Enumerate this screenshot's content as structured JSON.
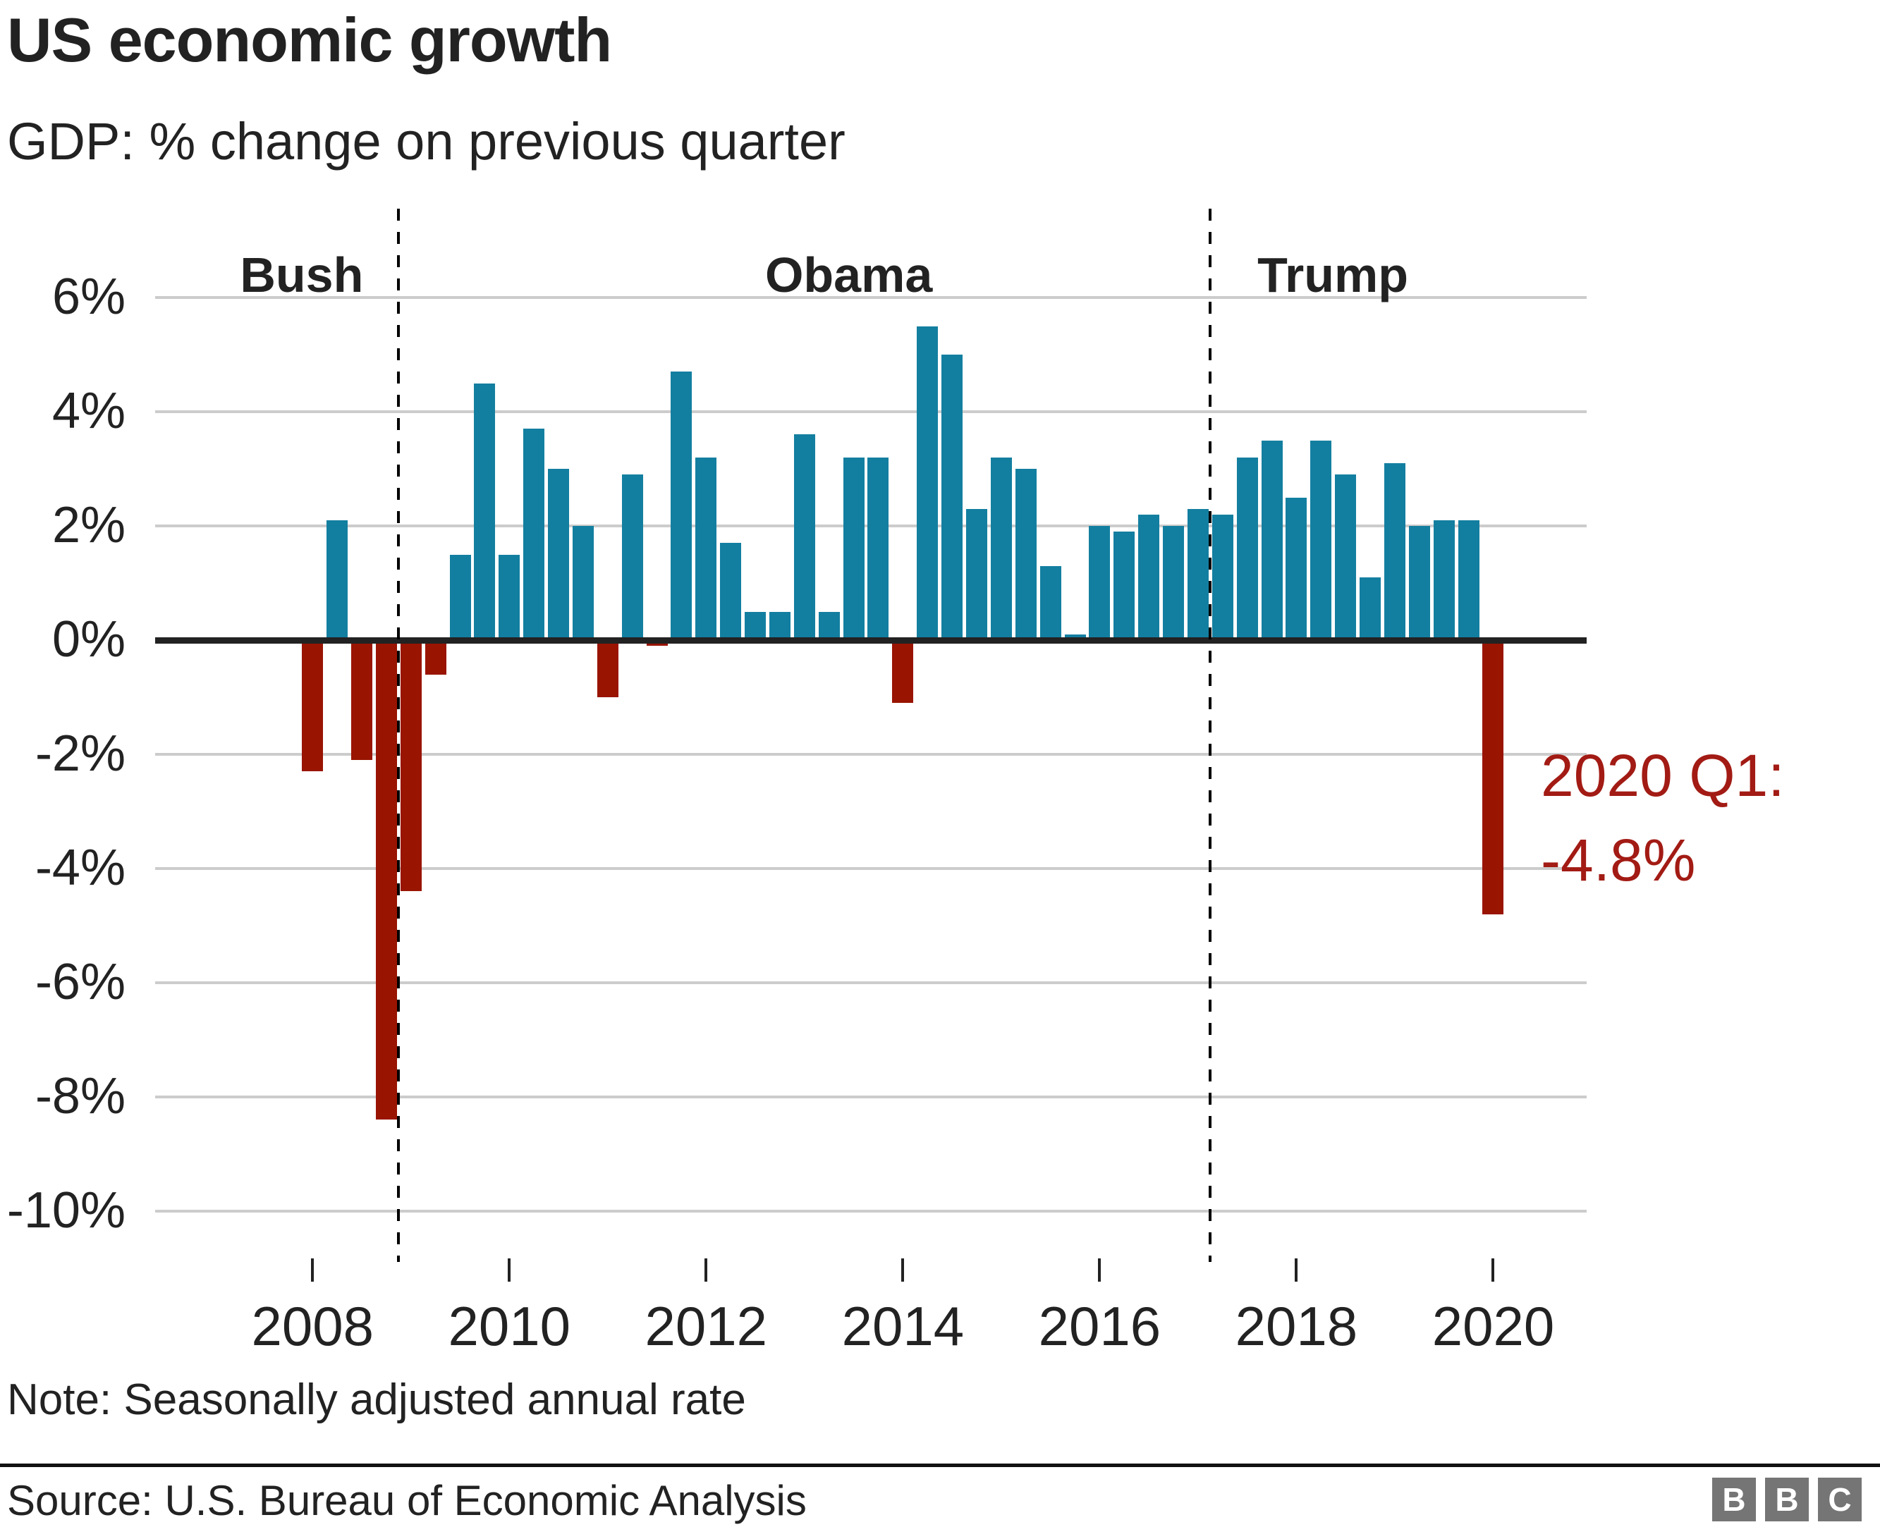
{
  "header": {
    "title": "US economic growth",
    "subtitle": "GDP: % change on previous quarter"
  },
  "chart_data": {
    "type": "bar",
    "title": "US economic growth",
    "subtitle": "GDP: % change on previous quarter",
    "unit": "percent",
    "quarters": [
      "2008 Q1",
      "2008 Q2",
      "2008 Q3",
      "2008 Q4",
      "2009 Q1",
      "2009 Q2",
      "2009 Q3",
      "2009 Q4",
      "2010 Q1",
      "2010 Q2",
      "2010 Q3",
      "2010 Q4",
      "2011 Q1",
      "2011 Q2",
      "2011 Q3",
      "2011 Q4",
      "2012 Q1",
      "2012 Q2",
      "2012 Q3",
      "2012 Q4",
      "2013 Q1",
      "2013 Q2",
      "2013 Q3",
      "2013 Q4",
      "2014 Q1",
      "2014 Q2",
      "2014 Q3",
      "2014 Q4",
      "2015 Q1",
      "2015 Q2",
      "2015 Q3",
      "2015 Q4",
      "2016 Q1",
      "2016 Q2",
      "2016 Q3",
      "2016 Q4",
      "2017 Q1",
      "2017 Q2",
      "2017 Q3",
      "2017 Q4",
      "2018 Q1",
      "2018 Q2",
      "2018 Q3",
      "2018 Q4",
      "2019 Q1",
      "2019 Q2",
      "2019 Q3",
      "2019 Q4",
      "2020 Q1"
    ],
    "values": [
      -2.3,
      2.1,
      -2.1,
      -8.4,
      -4.4,
      -0.6,
      1.5,
      4.5,
      1.5,
      3.7,
      3.0,
      2.0,
      -1.0,
      2.9,
      -0.1,
      4.7,
      3.2,
      1.7,
      0.5,
      0.5,
      3.6,
      0.5,
      3.2,
      3.2,
      -1.1,
      5.5,
      5.0,
      2.3,
      3.2,
      3.0,
      1.3,
      0.1,
      2.0,
      1.9,
      2.2,
      2.0,
      2.3,
      2.2,
      3.2,
      3.5,
      2.5,
      3.5,
      2.9,
      1.1,
      3.1,
      2.0,
      2.1,
      2.1,
      -4.8
    ],
    "y_ticks": [
      6,
      4,
      2,
      0,
      -2,
      -4,
      -6,
      -8,
      -10
    ],
    "y_tick_suffix": "%",
    "x_ticks": [
      2008,
      2010,
      2012,
      2014,
      2016,
      2018,
      2020
    ],
    "x_range": [
      2006.4,
      2020.95
    ],
    "grid": true,
    "dividers": [
      2008.875,
      2017.125
    ],
    "era_labels": [
      {
        "label": "Bush",
        "x_year": 2007.89
      },
      {
        "label": "Obama",
        "x_year": 2013.45
      },
      {
        "label": "Trump",
        "x_year": 2018.37
      }
    ],
    "colors": {
      "positive": "#137fa0",
      "negative": "#991401"
    },
    "annotation": {
      "line1": "2020 Q1:",
      "line2": "-4.8%",
      "color": "#a21b14",
      "for_quarter": "2020 Q1",
      "value": -4.8
    }
  },
  "footer": {
    "note": "Note: Seasonally adjusted annual rate",
    "source": "Source: U.S. Bureau of Economic Analysis",
    "logo_letters": [
      "B",
      "B",
      "C"
    ]
  }
}
